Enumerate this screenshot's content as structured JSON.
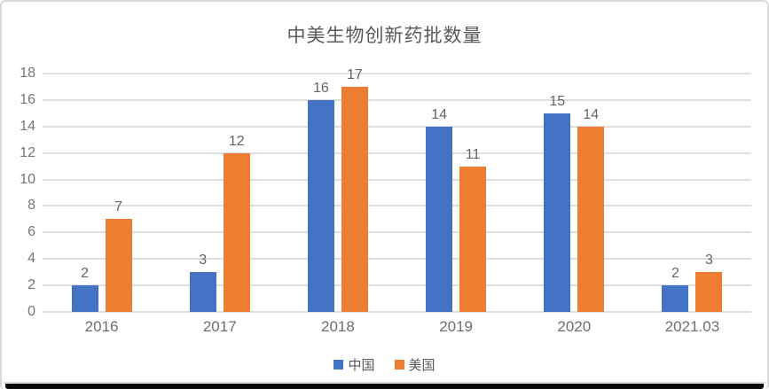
{
  "chart_data": {
    "type": "bar",
    "title": "中美生物创新药批数量",
    "categories": [
      "2016",
      "2017",
      "2018",
      "2019",
      "2020",
      "2021.03"
    ],
    "series": [
      {
        "name": "中国",
        "color": "#4472C4",
        "values": [
          2,
          3,
          16,
          14,
          15,
          2
        ]
      },
      {
        "name": "美国",
        "color": "#ED7D31",
        "values": [
          7,
          12,
          17,
          11,
          14,
          3
        ]
      }
    ],
    "xlabel": "",
    "ylabel": "",
    "ylim": [
      0,
      18
    ],
    "yticks": [
      0,
      2,
      4,
      6,
      8,
      10,
      12,
      14,
      16,
      18
    ],
    "grid": "horizontal",
    "legend_position": "bottom",
    "data_labels": true
  },
  "colors": {
    "title_text": "#595959",
    "axis_text": "#757575",
    "gridline": "#dedede",
    "card_border": "#d9d9d9",
    "bottom_strip": "#0a0a0a"
  }
}
